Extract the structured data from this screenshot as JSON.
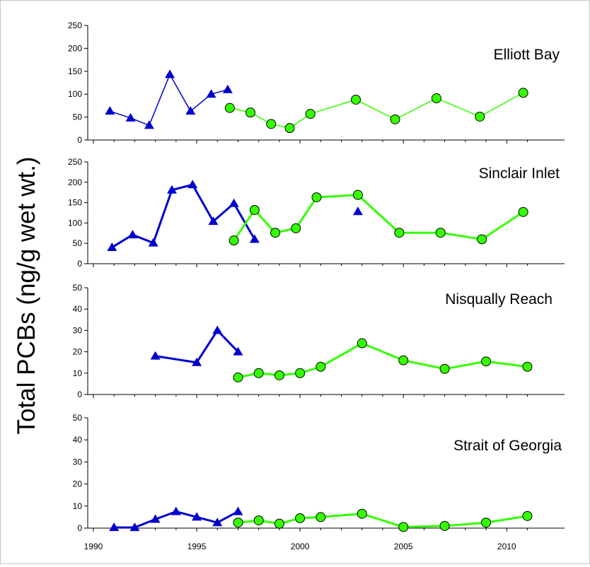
{
  "chart_data": {
    "type": "line",
    "ylabel": "Total PCBs (ng/g wet wt.)",
    "x_ticks": [
      "1990",
      "1995",
      "2000",
      "2005",
      "2010"
    ],
    "xlim": [
      1990,
      2012
    ],
    "colors": {
      "series_a": "#0000cc",
      "series_b": "#33ff00"
    },
    "panels": [
      {
        "title": "Elliott Bay",
        "ylim": [
          0,
          250
        ],
        "y_ticks": [
          "0",
          "50",
          "100",
          "150",
          "200",
          "250"
        ],
        "series": [
          {
            "marker": "triangle",
            "x": [
              1990.8,
              1991.8,
              1992.7,
              1993.7,
              1994.7,
              1995.7,
              1996.5
            ],
            "y": [
              63,
              48,
              32,
              143,
              63,
              100,
              110
            ]
          },
          {
            "marker": "circle",
            "x": [
              1996.6,
              1997.6,
              1998.6,
              1999.5,
              2000.5,
              2002.7,
              2004.6,
              2006.6,
              2008.7,
              2010.8
            ],
            "y": [
              70,
              60,
              35,
              26,
              57,
              88,
              45,
              91,
              51,
              103
            ]
          }
        ]
      },
      {
        "title": "Sinclair Inlet",
        "ylim": [
          0,
          250
        ],
        "y_ticks": [
          "0",
          "50",
          "100",
          "150",
          "200",
          "250"
        ],
        "series": [
          {
            "marker": "triangle",
            "x": [
              1990.9,
              1991.9,
              1992.9,
              1993.8,
              1994.8,
              1995.8,
              1996.8,
              1997.8,
              2002.8
            ],
            "y": [
              40,
              71,
              51,
              181,
              194,
              104,
              148,
              60,
              128
            ]
          },
          {
            "marker": "circle",
            "x": [
              1996.8,
              1997.8,
              1998.8,
              1999.8,
              2000.8,
              2002.8,
              2004.8,
              2006.8,
              2008.8,
              2010.8
            ],
            "y": [
              57,
              132,
              76,
              87,
              163,
              169,
              76,
              76,
              60,
              127
            ]
          }
        ]
      },
      {
        "title": "Nisqually Reach",
        "ylim": [
          0,
          50
        ],
        "y_ticks": [
          "0",
          "10",
          "20",
          "30",
          "40",
          "50"
        ],
        "series": [
          {
            "marker": "triangle",
            "x": [
              1993,
              1995,
              1996,
              1997
            ],
            "y": [
              18,
              15,
              30,
              20
            ]
          },
          {
            "marker": "circle",
            "x": [
              1997,
              1998,
              1999,
              2000,
              2001,
              2003,
              2005,
              2007,
              2009,
              2011
            ],
            "y": [
              8,
              10,
              9,
              10,
              13,
              24,
              16,
              12,
              15.5,
              13
            ]
          }
        ]
      },
      {
        "title": "Strait of Georgia",
        "ylim": [
          0,
          50
        ],
        "y_ticks": [
          "0",
          "10",
          "20",
          "30",
          "40",
          "50"
        ],
        "series": [
          {
            "marker": "triangle",
            "x": [
              1991,
              1992,
              1993,
              1994,
              1995,
              1996,
              1997
            ],
            "y": [
              0.3,
              0.3,
              4,
              7.5,
              5,
              2.5,
              7.5
            ]
          },
          {
            "marker": "circle",
            "x": [
              1997,
              1998,
              1999,
              2000,
              2001,
              2003,
              2005,
              2007,
              2009,
              2011
            ],
            "y": [
              2.5,
              3.5,
              2,
              4.5,
              5,
              6.5,
              0.5,
              1,
              2.5,
              5.5
            ]
          }
        ]
      }
    ]
  }
}
